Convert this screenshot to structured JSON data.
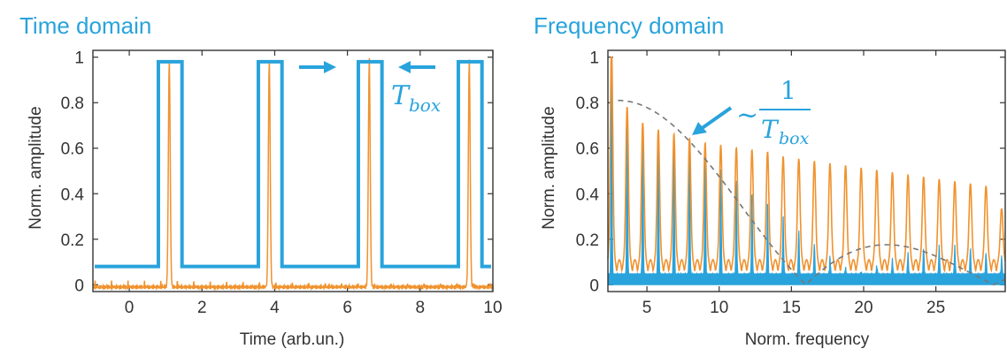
{
  "colors": {
    "accent": "#29a3dc",
    "orange": "#f0922e",
    "axis": "#333333",
    "envelope": "#777777"
  },
  "chart_data": [
    {
      "type": "line",
      "title": "Time domain",
      "xlabel": "Time (arb.un.)",
      "ylabel": "Norm. amplitude",
      "xlim": [
        -1,
        10
      ],
      "ylim": [
        -0.03,
        1.03
      ],
      "xticks": [
        0,
        2,
        4,
        6,
        8,
        10
      ],
      "yticks": [
        0,
        0.2,
        0.4,
        0.6,
        0.8,
        1
      ],
      "xtick_labels": [
        "0",
        "2",
        "4",
        "6",
        "8",
        "10"
      ],
      "ytick_labels": [
        "0",
        "0.2",
        "0.4",
        "0.6",
        "0.8",
        "1"
      ],
      "box_windows": [
        [
          0.8,
          1.45
        ],
        [
          3.55,
          4.2
        ],
        [
          6.3,
          6.95
        ],
        [
          9.05,
          9.7
        ]
      ],
      "box_low": 0.08,
      "box_high": 0.98,
      "pulse_times": [
        1.1,
        3.85,
        6.6,
        9.35
      ],
      "pulse_peak": 1.0,
      "noise_floor": -0.01,
      "annotation": {
        "symbol": "T",
        "subscript": "box"
      },
      "series": []
    },
    {
      "type": "line",
      "title": "Frequency domain",
      "xlabel": "Norm. frequency",
      "ylabel": "Norm. amplitude",
      "xlim": [
        2.3,
        29.8
      ],
      "ylim": [
        -0.03,
        1.03
      ],
      "xticks": [
        5,
        10,
        15,
        20,
        25
      ],
      "yticks": [
        0,
        0.2,
        0.4,
        0.6,
        0.8,
        1
      ],
      "xtick_labels": [
        "5",
        "10",
        "15",
        "20",
        "25"
      ],
      "ytick_labels": [
        "0",
        "0.2",
        "0.4",
        "0.6",
        "0.8",
        "1"
      ],
      "comb_spacing": 1.08,
      "comb_start": 2.55,
      "comb_count": 26,
      "envelope_peak": 0.81,
      "envelope_zero": 16.0,
      "orange_peaks": [
        0.98,
        0.72,
        0.65,
        0.62,
        0.6,
        0.58,
        0.56,
        0.55,
        0.54,
        0.53,
        0.52,
        0.5,
        0.49,
        0.48,
        0.47,
        0.46,
        0.45,
        0.44,
        0.43,
        0.42,
        0.41,
        0.4,
        0.39,
        0.38,
        0.37,
        0.27
      ],
      "blue_peaks": [
        0.97,
        0.7,
        0.63,
        0.61,
        0.6,
        0.56,
        0.52,
        0.47,
        0.42,
        0.37,
        0.32,
        0.26,
        0.2,
        0.14,
        0.08,
        0.03,
        0.01,
        0.04,
        0.07,
        0.1,
        0.12,
        0.13,
        0.13,
        0.12,
        0.1,
        0.08
      ],
      "annotation": {
        "prefix": "~",
        "numerator": "1",
        "symbol": "T",
        "subscript": "box"
      },
      "series": []
    }
  ]
}
